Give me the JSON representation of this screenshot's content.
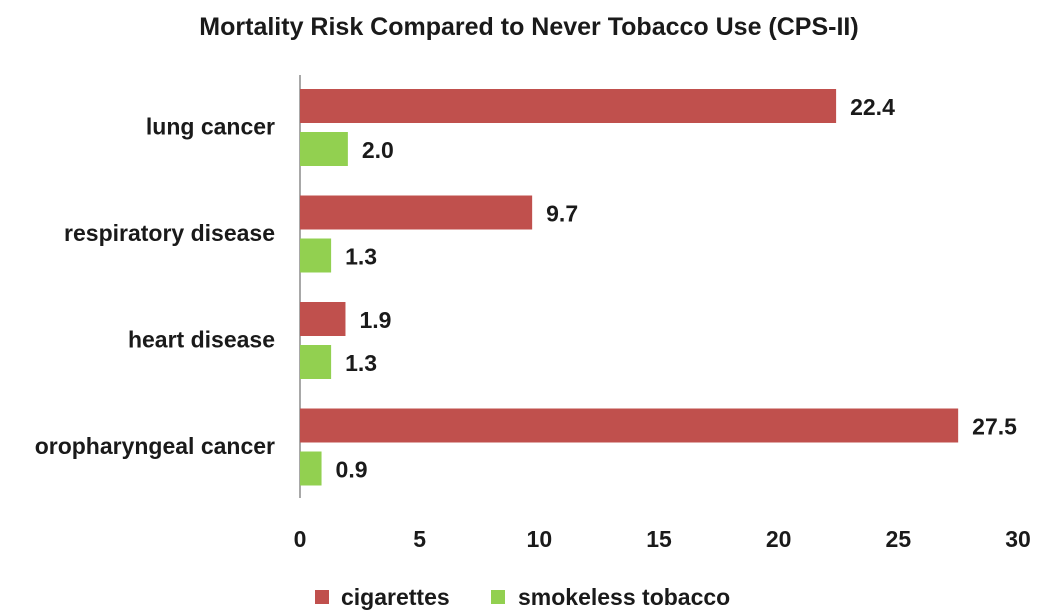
{
  "chart_data": {
    "type": "bar",
    "orientation": "horizontal",
    "title": "Mortality Risk Compared to Never Tobacco  Use (CPS-II)",
    "categories": [
      "lung cancer",
      "respiratory disease",
      "heart disease",
      "oropharyngeal cancer"
    ],
    "series": [
      {
        "name": "cigarettes",
        "color": "#c0504d",
        "values": [
          22.4,
          9.7,
          1.9,
          27.5
        ]
      },
      {
        "name": "smokeless tobacco",
        "color": "#92d050",
        "values": [
          2.0,
          1.3,
          1.3,
          0.9
        ]
      }
    ],
    "xlim": [
      0,
      30
    ],
    "xticks": [
      0,
      5,
      10,
      15,
      20,
      25,
      30
    ],
    "value_decimals": 1,
    "grid": false,
    "legend_position": "bottom"
  }
}
